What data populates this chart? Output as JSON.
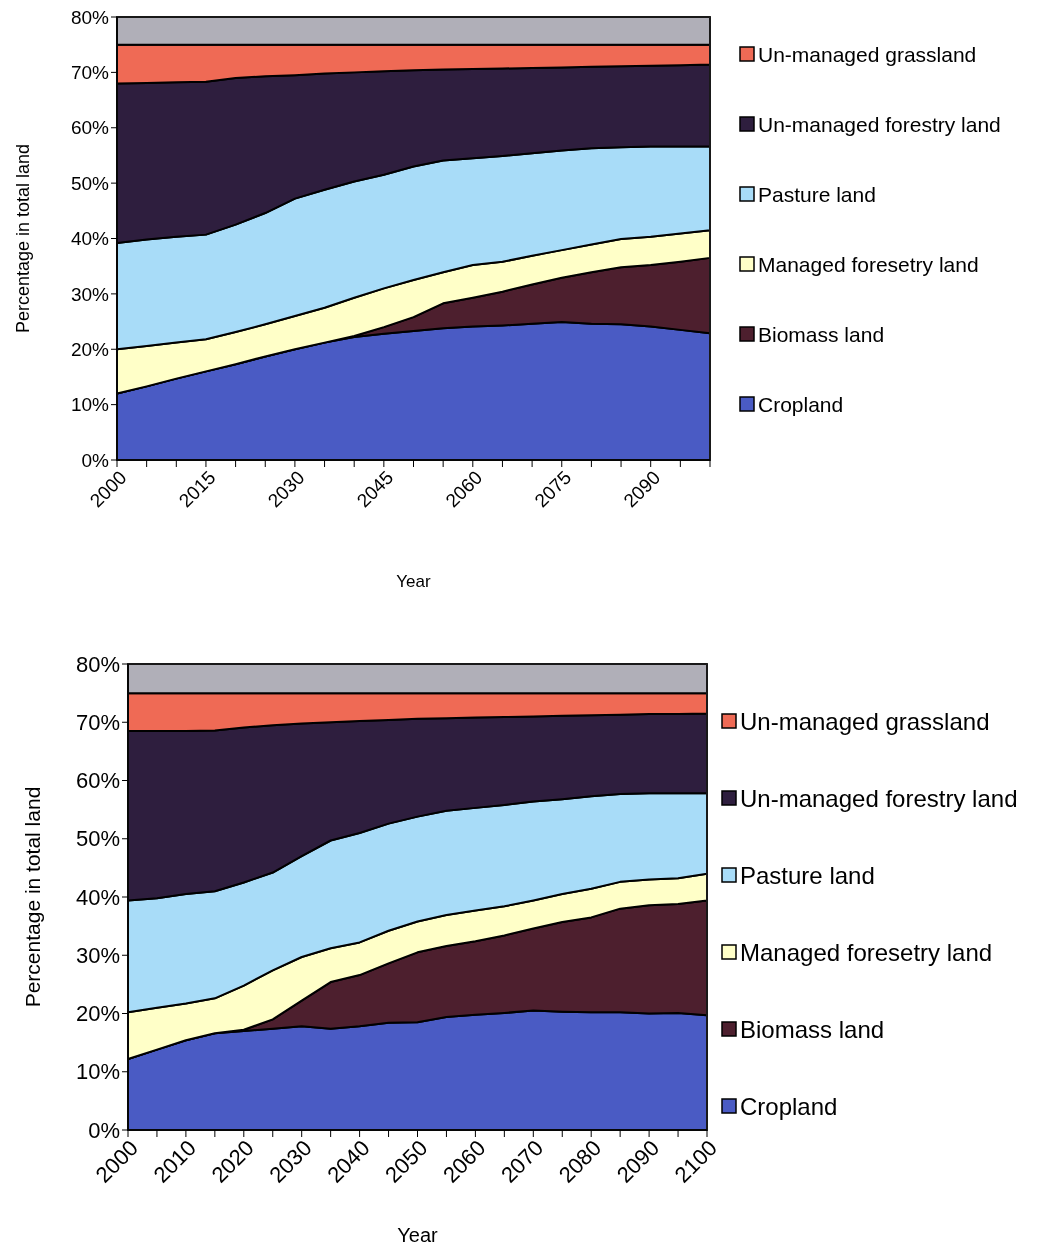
{
  "chart_data": [
    {
      "type": "area",
      "stacked": true,
      "xlabel": "Year",
      "ylabel": "Percentage in total land",
      "legend": "right",
      "ylim": [
        0,
        80
      ],
      "yticks": [
        {
          "value": 0,
          "label": "0%"
        },
        {
          "value": 10,
          "label": "10%"
        },
        {
          "value": 20,
          "label": "20%"
        },
        {
          "value": 30,
          "label": "30%"
        },
        {
          "value": 40,
          "label": "40%"
        },
        {
          "value": 50,
          "label": "50%"
        },
        {
          "value": 60,
          "label": "60%"
        },
        {
          "value": 70,
          "label": "70%"
        },
        {
          "value": 80,
          "label": "80%"
        }
      ],
      "categories": [
        "2000",
        null,
        null,
        "2015",
        null,
        null,
        "2030",
        null,
        null,
        "2045",
        null,
        null,
        "2060",
        null,
        null,
        "2075",
        null,
        null,
        "2090",
        null,
        null
      ],
      "series": [
        {
          "name": "Cropland",
          "color": "#4a5bc4",
          "values": [
            12,
            13.3,
            14.7,
            16,
            17.3,
            18.7,
            20,
            21.2,
            22.2,
            22.8,
            23.3,
            23.8,
            24.1,
            24.3,
            24.6,
            24.9,
            24.6,
            24.5,
            24.1,
            23.5,
            22.9
          ]
        },
        {
          "name": "Biomass land",
          "color": "#4d1f2e",
          "values": [
            0,
            0,
            0,
            0,
            0,
            0,
            0,
            0,
            0.2,
            1.2,
            2.5,
            4.5,
            5.2,
            6.1,
            7.1,
            8,
            9.3,
            10.3,
            11.1,
            12.3,
            13.6
          ]
        },
        {
          "name": "Managed foresetry land",
          "color": "#ffffc8",
          "values": [
            8,
            7.3,
            6.5,
            5.8,
            5.8,
            5.8,
            6,
            6.3,
            6.9,
            7,
            6.7,
            5.6,
            5.9,
            5.4,
            5.2,
            5,
            5,
            5.1,
            5.1,
            5.1,
            5
          ]
        },
        {
          "name": "Pasture land",
          "color": "#a8dcf8",
          "values": [
            19.2,
            19.2,
            19.1,
            18.9,
            19.4,
            20.1,
            21.2,
            21.3,
            21,
            20.5,
            20.5,
            20.2,
            19.3,
            19.1,
            18.5,
            18,
            17.4,
            16.6,
            16.3,
            15.7,
            15.1
          ]
        },
        {
          "name": "Un-managed forestry land",
          "color": "#2e1e3e",
          "values": [
            28.8,
            28.3,
            27.9,
            27.6,
            26.5,
            24.7,
            22.3,
            21,
            19.7,
            18.7,
            17.4,
            16.4,
            16.1,
            15.8,
            15.4,
            15,
            14.7,
            14.6,
            14.6,
            14.7,
            14.8
          ]
        },
        {
          "name": "Un-managed grassland",
          "color": "#ef6a55",
          "values": [
            7,
            6.9,
            6.8,
            6.7,
            6,
            5.7,
            5.5,
            5.2,
            5,
            4.8,
            4.6,
            4.5,
            4.4,
            4.3,
            4.2,
            4.1,
            4,
            3.9,
            3.8,
            3.7,
            3.6
          ]
        },
        {
          "color": "#b0afb8",
          "values": [
            5,
            5,
            5,
            5,
            5,
            5,
            5,
            5,
            5,
            5,
            5,
            5,
            5,
            5,
            5,
            5,
            5,
            5,
            5,
            5,
            5
          ]
        }
      ]
    },
    {
      "type": "area",
      "stacked": true,
      "xlabel": "Year",
      "ylabel": "Percentage in total land",
      "legend": "right",
      "ylim": [
        0,
        80
      ],
      "yticks": [
        {
          "value": 0,
          "label": "0%"
        },
        {
          "value": 10,
          "label": "10%"
        },
        {
          "value": 20,
          "label": "20%"
        },
        {
          "value": 30,
          "label": "30%"
        },
        {
          "value": 40,
          "label": "40%"
        },
        {
          "value": 50,
          "label": "50%"
        },
        {
          "value": 60,
          "label": "60%"
        },
        {
          "value": 70,
          "label": "70%"
        },
        {
          "value": 80,
          "label": "80%"
        }
      ],
      "categories": [
        "2000",
        null,
        "2010",
        null,
        "2020",
        null,
        "2030",
        null,
        "2040",
        null,
        "2050",
        null,
        "2060",
        null,
        "2070",
        null,
        "2080",
        null,
        "2090",
        null,
        "2100"
      ],
      "series": [
        {
          "name": "Cropland",
          "color": "#4a5bc4",
          "values": [
            12.2,
            13.8,
            15.4,
            16.6,
            17,
            17.4,
            17.8,
            17.4,
            17.8,
            18.4,
            18.5,
            19.4,
            19.8,
            20.1,
            20.5,
            20.3,
            20.2,
            20.2,
            20,
            20.1,
            19.7
          ]
        },
        {
          "name": "Biomass land",
          "color": "#4d1f2e",
          "values": [
            0,
            0,
            0,
            0,
            0.2,
            1.6,
            4.4,
            8,
            8.8,
            10.2,
            12,
            12.2,
            12.6,
            13.3,
            14.1,
            15.4,
            16.3,
            17.8,
            18.6,
            18.7,
            19.7
          ]
        },
        {
          "name": "Managed foresetry land",
          "color": "#ffffc8",
          "values": [
            8,
            7.2,
            6.3,
            6,
            7.6,
            8.4,
            7.5,
            5.8,
            5.6,
            5.6,
            5.3,
            5.3,
            5.3,
            5,
            4.8,
            4.8,
            4.9,
            4.6,
            4.4,
            4.4,
            4.6
          ]
        },
        {
          "name": "Pasture land",
          "color": "#a8dcf8",
          "values": [
            19.2,
            18.8,
            18.8,
            18.4,
            17.7,
            16.8,
            17.3,
            18.5,
            18.8,
            18.4,
            18,
            17.9,
            17.6,
            17.4,
            17,
            16.3,
            15.9,
            15.1,
            14.8,
            14.6,
            13.8
          ]
        },
        {
          "name": "Un-managed forestry land",
          "color": "#2e1e3e",
          "values": [
            29.1,
            28.7,
            28,
            27.6,
            26.6,
            25.3,
            22.8,
            20.3,
            19.2,
            17.8,
            16.8,
            15.9,
            15.5,
            15.1,
            14.6,
            14.3,
            13.9,
            13.6,
            13.6,
            13.6,
            13.7
          ]
        },
        {
          "name": "Un-managed grassland",
          "color": "#ef6a55",
          "values": [
            6.5,
            6.5,
            6.5,
            6.4,
            5.9,
            5.5,
            5.2,
            5,
            4.8,
            4.6,
            4.4,
            4.3,
            4.2,
            4.1,
            4,
            3.9,
            3.8,
            3.7,
            3.6,
            3.6,
            3.5
          ]
        },
        {
          "color": "#b0afb8",
          "values": [
            5,
            5,
            5,
            5,
            5,
            5,
            5,
            5,
            5,
            5,
            5,
            5,
            5,
            5,
            5,
            5,
            5,
            5,
            5,
            5,
            5
          ]
        }
      ]
    }
  ]
}
